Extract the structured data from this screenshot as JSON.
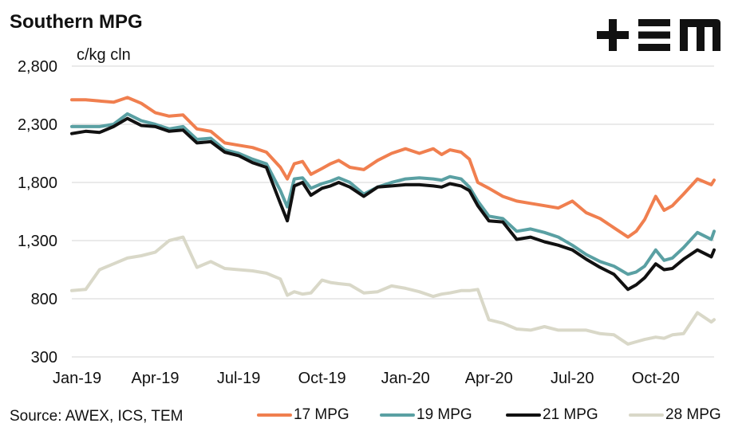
{
  "chart_data": {
    "type": "line",
    "title": "Southern MPG",
    "ylabel": "c/kg cln",
    "ylim": [
      300,
      2800
    ],
    "yticks": [
      300,
      800,
      1300,
      1800,
      2300,
      2800
    ],
    "ytick_labels": [
      "300",
      "800",
      "1,300",
      "1,800",
      "2,300",
      "2,800"
    ],
    "xlim": [
      0,
      23.1
    ],
    "xticks": [
      0,
      3,
      6,
      9,
      12,
      15,
      18,
      21
    ],
    "xtick_labels": [
      "Jan-19",
      "Apr-19",
      "Jul-19",
      "Oct-19",
      "Jan-20",
      "Apr-20",
      "Jul-20",
      "Oct-20"
    ],
    "grid": "horizontal",
    "legend_position": "bottom",
    "source": "Source: AWEX, ICS, TEM",
    "series": [
      {
        "name": "17 MPG",
        "color": "#f07f4f",
        "x": [
          0,
          0.5,
          1,
          1.5,
          2,
          2.5,
          3,
          3.5,
          4,
          4.5,
          5,
          5.5,
          6,
          6.5,
          7,
          7.5,
          7.75,
          8,
          8.3,
          8.6,
          9,
          9.3,
          9.6,
          10,
          10.5,
          11,
          11.5,
          12,
          12.5,
          13,
          13.3,
          13.6,
          14,
          14.3,
          14.6,
          15,
          15.5,
          16,
          16.5,
          17,
          17.5,
          18,
          18.5,
          19,
          19.5,
          20,
          20.3,
          20.6,
          21,
          21.3,
          21.6,
          22,
          22.5,
          23,
          23.1
        ],
        "values": [
          2510,
          2510,
          2500,
          2490,
          2530,
          2480,
          2400,
          2370,
          2380,
          2260,
          2240,
          2140,
          2120,
          2100,
          2060,
          1930,
          1830,
          1960,
          1980,
          1870,
          1920,
          1960,
          1990,
          1930,
          1910,
          1990,
          2050,
          2090,
          2050,
          2090,
          2040,
          2080,
          2060,
          2000,
          1800,
          1750,
          1680,
          1640,
          1620,
          1600,
          1580,
          1640,
          1540,
          1490,
          1410,
          1330,
          1380,
          1480,
          1680,
          1560,
          1600,
          1700,
          1830,
          1780,
          1820
        ]
      },
      {
        "name": "19 MPG",
        "color": "#5aa0a3",
        "x": [
          0,
          0.5,
          1,
          1.5,
          2,
          2.5,
          3,
          3.5,
          4,
          4.5,
          5,
          5.5,
          6,
          6.5,
          7,
          7.5,
          7.75,
          8,
          8.3,
          8.6,
          9,
          9.3,
          9.6,
          10,
          10.5,
          11,
          11.5,
          12,
          12.5,
          13,
          13.3,
          13.6,
          14,
          14.3,
          14.6,
          15,
          15.5,
          16,
          16.5,
          17,
          17.5,
          18,
          18.5,
          19,
          19.5,
          20,
          20.3,
          20.6,
          21,
          21.3,
          21.6,
          22,
          22.5,
          23,
          23.1
        ],
        "values": [
          2280,
          2280,
          2280,
          2300,
          2390,
          2330,
          2300,
          2260,
          2280,
          2170,
          2180,
          2080,
          2050,
          2000,
          1960,
          1730,
          1590,
          1830,
          1840,
          1750,
          1790,
          1810,
          1840,
          1800,
          1700,
          1760,
          1800,
          1830,
          1840,
          1830,
          1820,
          1850,
          1830,
          1760,
          1640,
          1510,
          1490,
          1380,
          1400,
          1370,
          1330,
          1260,
          1180,
          1120,
          1080,
          1010,
          1030,
          1080,
          1220,
          1130,
          1150,
          1240,
          1370,
          1310,
          1380
        ]
      },
      {
        "name": "21 MPG",
        "color": "#111111",
        "x": [
          0,
          0.5,
          1,
          1.5,
          2,
          2.5,
          3,
          3.5,
          4,
          4.5,
          5,
          5.5,
          6,
          6.5,
          7,
          7.5,
          7.75,
          8,
          8.3,
          8.6,
          9,
          9.3,
          9.6,
          10,
          10.5,
          11,
          11.5,
          12,
          12.5,
          13,
          13.3,
          13.6,
          14,
          14.3,
          14.6,
          15,
          15.5,
          16,
          16.5,
          17,
          17.5,
          18,
          18.5,
          19,
          19.5,
          20,
          20.3,
          20.6,
          21,
          21.3,
          21.6,
          22,
          22.5,
          23,
          23.1
        ],
        "values": [
          2220,
          2240,
          2230,
          2280,
          2350,
          2290,
          2280,
          2240,
          2250,
          2140,
          2150,
          2060,
          2030,
          1970,
          1930,
          1620,
          1470,
          1770,
          1800,
          1690,
          1750,
          1770,
          1800,
          1760,
          1680,
          1760,
          1770,
          1780,
          1780,
          1770,
          1760,
          1790,
          1770,
          1730,
          1600,
          1470,
          1460,
          1310,
          1330,
          1290,
          1260,
          1220,
          1140,
          1070,
          1010,
          880,
          920,
          980,
          1100,
          1050,
          1060,
          1140,
          1220,
          1160,
          1220
        ]
      },
      {
        "name": "28 MPG",
        "color": "#d9d8c8",
        "x": [
          0,
          0.5,
          1,
          1.5,
          2,
          2.5,
          3,
          3.5,
          4,
          4.5,
          5,
          5.5,
          6,
          6.5,
          7,
          7.5,
          7.75,
          8,
          8.3,
          8.6,
          9,
          9.3,
          9.6,
          10,
          10.5,
          11,
          11.5,
          12,
          12.5,
          13,
          13.3,
          13.6,
          14,
          14.3,
          14.6,
          15,
          15.5,
          16,
          16.5,
          17,
          17.5,
          18,
          18.5,
          19,
          19.5,
          20,
          20.3,
          20.6,
          21,
          21.3,
          21.6,
          22,
          22.5,
          23,
          23.1
        ],
        "values": [
          870,
          880,
          1050,
          1100,
          1150,
          1170,
          1200,
          1300,
          1330,
          1070,
          1120,
          1060,
          1050,
          1040,
          1020,
          970,
          830,
          860,
          840,
          850,
          960,
          940,
          930,
          920,
          850,
          860,
          910,
          890,
          860,
          820,
          840,
          850,
          870,
          870,
          880,
          620,
          590,
          540,
          530,
          560,
          530,
          530,
          530,
          500,
          490,
          410,
          430,
          450,
          470,
          460,
          490,
          500,
          680,
          600,
          620
        ]
      }
    ]
  },
  "logo": {
    "text": "+≡M"
  },
  "legend_labels": [
    "17 MPG",
    "19 MPG",
    "21 MPG",
    "28 MPG"
  ]
}
